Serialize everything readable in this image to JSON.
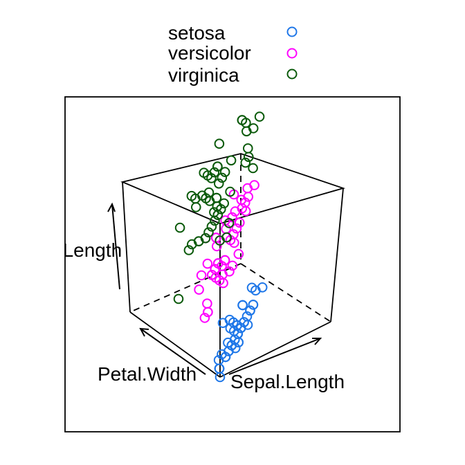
{
  "colors": {
    "setosa": "#1f77e8",
    "versicolor": "#ff00ff",
    "virginica": "#0b5a0b",
    "axes": "#000000"
  },
  "chart_data": {
    "type": "scatter",
    "projection": "3d",
    "axes": {
      "x": "Sepal.Length",
      "y": "Petal.Width",
      "z": "Sepal.Length"
    },
    "axis_labels": {
      "x": "Sepal.Length",
      "y": "Petal.Width",
      "z": "al.Length"
    },
    "grid": false,
    "legend_position": "top",
    "legend": [
      {
        "name": "setosa",
        "color": "#1f77e8"
      },
      {
        "name": "versicolor",
        "color": "#ff00ff"
      },
      {
        "name": "virginica",
        "color": "#0b5a0b"
      }
    ],
    "series": [
      {
        "name": "setosa",
        "color": "#1f77e8",
        "marker": "circle-open",
        "points": [
          [
            5.1,
            0.2
          ],
          [
            4.9,
            0.2
          ],
          [
            4.7,
            0.2
          ],
          [
            4.6,
            0.2
          ],
          [
            5.0,
            0.2
          ],
          [
            5.4,
            0.4
          ],
          [
            4.6,
            0.3
          ],
          [
            5.0,
            0.2
          ],
          [
            4.4,
            0.2
          ],
          [
            4.9,
            0.1
          ],
          [
            5.4,
            0.2
          ],
          [
            4.8,
            0.2
          ],
          [
            4.8,
            0.1
          ],
          [
            4.3,
            0.1
          ],
          [
            5.8,
            0.2
          ],
          [
            5.7,
            0.4
          ],
          [
            5.4,
            0.4
          ],
          [
            5.1,
            0.3
          ],
          [
            5.7,
            0.3
          ],
          [
            5.1,
            0.3
          ],
          [
            5.4,
            0.2
          ],
          [
            5.1,
            0.4
          ],
          [
            4.6,
            0.2
          ],
          [
            5.1,
            0.5
          ],
          [
            4.8,
            0.2
          ],
          [
            5.0,
            0.2
          ],
          [
            5.0,
            0.4
          ],
          [
            5.2,
            0.2
          ],
          [
            5.2,
            0.2
          ],
          [
            4.7,
            0.2
          ],
          [
            4.8,
            0.2
          ],
          [
            5.4,
            0.4
          ],
          [
            5.2,
            0.1
          ],
          [
            5.5,
            0.2
          ],
          [
            4.9,
            0.2
          ],
          [
            5.0,
            0.2
          ],
          [
            5.5,
            0.2
          ],
          [
            4.9,
            0.1
          ],
          [
            4.4,
            0.2
          ],
          [
            5.1,
            0.2
          ],
          [
            5.0,
            0.3
          ],
          [
            4.5,
            0.3
          ],
          [
            4.4,
            0.2
          ],
          [
            5.0,
            0.6
          ],
          [
            5.1,
            0.4
          ],
          [
            4.8,
            0.3
          ],
          [
            5.1,
            0.2
          ],
          [
            4.6,
            0.2
          ],
          [
            5.3,
            0.2
          ],
          [
            5.0,
            0.2
          ]
        ]
      },
      {
        "name": "versicolor",
        "color": "#ff00ff",
        "marker": "circle-open",
        "points": [
          [
            7.0,
            1.4
          ],
          [
            6.4,
            1.5
          ],
          [
            6.9,
            1.5
          ],
          [
            5.5,
            1.3
          ],
          [
            6.5,
            1.5
          ],
          [
            5.7,
            1.3
          ],
          [
            6.3,
            1.6
          ],
          [
            4.9,
            1.0
          ],
          [
            6.6,
            1.3
          ],
          [
            5.2,
            1.4
          ],
          [
            5.0,
            1.0
          ],
          [
            5.9,
            1.5
          ],
          [
            6.0,
            1.0
          ],
          [
            6.1,
            1.4
          ],
          [
            5.6,
            1.3
          ],
          [
            6.7,
            1.4
          ],
          [
            5.6,
            1.5
          ],
          [
            5.8,
            1.0
          ],
          [
            6.2,
            1.5
          ],
          [
            5.6,
            1.1
          ],
          [
            5.9,
            1.8
          ],
          [
            6.1,
            1.3
          ],
          [
            6.3,
            1.5
          ],
          [
            6.1,
            1.2
          ],
          [
            6.4,
            1.3
          ],
          [
            6.6,
            1.4
          ],
          [
            6.8,
            1.4
          ],
          [
            6.7,
            1.7
          ],
          [
            6.0,
            1.5
          ],
          [
            5.7,
            1.0
          ],
          [
            5.5,
            1.1
          ],
          [
            5.5,
            1.0
          ],
          [
            5.8,
            1.2
          ],
          [
            6.0,
            1.6
          ],
          [
            5.4,
            1.5
          ],
          [
            6.0,
            1.6
          ],
          [
            6.7,
            1.5
          ],
          [
            6.3,
            1.3
          ],
          [
            5.6,
            1.3
          ],
          [
            5.5,
            1.3
          ],
          [
            5.5,
            1.2
          ],
          [
            6.1,
            1.4
          ],
          [
            5.8,
            1.2
          ],
          [
            5.0,
            1.0
          ],
          [
            5.6,
            1.3
          ],
          [
            5.7,
            1.2
          ],
          [
            5.7,
            1.3
          ],
          [
            6.2,
            1.3
          ],
          [
            5.1,
            1.1
          ],
          [
            5.7,
            1.3
          ]
        ]
      },
      {
        "name": "virginica",
        "color": "#0b5a0b",
        "marker": "circle-open",
        "points": [
          [
            6.3,
            2.5
          ],
          [
            5.8,
            1.9
          ],
          [
            7.1,
            2.1
          ],
          [
            6.3,
            1.8
          ],
          [
            6.5,
            2.2
          ],
          [
            7.6,
            2.1
          ],
          [
            4.9,
            1.7
          ],
          [
            7.3,
            1.8
          ],
          [
            6.7,
            1.8
          ],
          [
            7.2,
            2.5
          ],
          [
            6.5,
            2.0
          ],
          [
            6.4,
            1.9
          ],
          [
            6.8,
            2.1
          ],
          [
            5.7,
            2.0
          ],
          [
            5.8,
            2.4
          ],
          [
            6.4,
            2.3
          ],
          [
            6.5,
            1.8
          ],
          [
            7.7,
            2.2
          ],
          [
            7.7,
            2.3
          ],
          [
            6.0,
            1.5
          ],
          [
            6.9,
            2.3
          ],
          [
            5.6,
            2.0
          ],
          [
            7.7,
            2.0
          ],
          [
            6.3,
            1.8
          ],
          [
            6.7,
            2.1
          ],
          [
            7.2,
            1.8
          ],
          [
            6.2,
            1.8
          ],
          [
            6.1,
            1.8
          ],
          [
            6.4,
            2.1
          ],
          [
            7.2,
            1.6
          ],
          [
            7.4,
            1.9
          ],
          [
            7.9,
            2.0
          ],
          [
            6.4,
            2.2
          ],
          [
            6.3,
            1.5
          ],
          [
            6.1,
            1.4
          ],
          [
            7.7,
            2.3
          ],
          [
            6.3,
            2.4
          ],
          [
            6.4,
            1.8
          ],
          [
            6.0,
            1.8
          ],
          [
            6.9,
            2.1
          ],
          [
            6.7,
            2.4
          ],
          [
            6.9,
            2.3
          ],
          [
            5.8,
            1.9
          ],
          [
            6.8,
            2.3
          ],
          [
            6.7,
            2.5
          ],
          [
            6.7,
            2.3
          ],
          [
            6.3,
            1.9
          ],
          [
            6.5,
            2.0
          ],
          [
            6.2,
            2.3
          ],
          [
            5.9,
            1.8
          ]
        ]
      }
    ]
  }
}
